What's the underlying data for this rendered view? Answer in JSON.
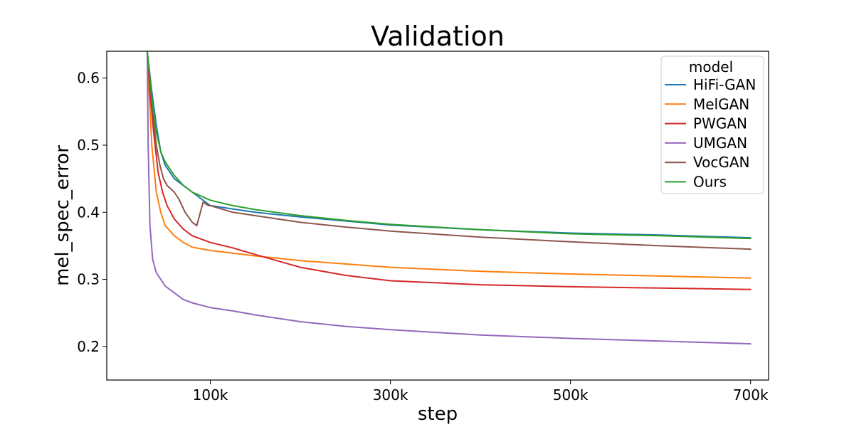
{
  "chart_data": {
    "type": "line",
    "title": "Validation",
    "xlabel": "step",
    "ylabel": "mel_spec_error",
    "xlim": [
      -15000,
      720000
    ],
    "ylim": [
      0.15,
      0.64
    ],
    "xticks": [
      {
        "value": 100000,
        "label": "100k"
      },
      {
        "value": 300000,
        "label": "300k"
      },
      {
        "value": 500000,
        "label": "500k"
      },
      {
        "value": 700000,
        "label": "700k"
      }
    ],
    "yticks": [
      {
        "value": 0.2,
        "label": "0.2"
      },
      {
        "value": 0.3,
        "label": "0.3"
      },
      {
        "value": 0.4,
        "label": "0.4"
      },
      {
        "value": 0.5,
        "label": "0.5"
      },
      {
        "value": 0.6,
        "label": "0.6"
      }
    ],
    "legend": {
      "title": "model",
      "position": "top-right"
    },
    "series": [
      {
        "name": "HiFi-GAN",
        "color": "#1f77b4",
        "x": [
          30000,
          35000,
          40000,
          45000,
          50000,
          60000,
          70000,
          80000,
          100000,
          125000,
          150000,
          200000,
          250000,
          300000,
          400000,
          500000,
          600000,
          700000
        ],
        "y": [
          0.64,
          0.58,
          0.53,
          0.49,
          0.47,
          0.45,
          0.44,
          0.43,
          0.41,
          0.405,
          0.4,
          0.393,
          0.387,
          0.381,
          0.374,
          0.369,
          0.366,
          0.362
        ]
      },
      {
        "name": "MelGAN",
        "color": "#ff7f0e",
        "x": [
          30000,
          32000,
          35000,
          40000,
          45000,
          50000,
          60000,
          70000,
          80000,
          100000,
          125000,
          150000,
          200000,
          250000,
          300000,
          400000,
          500000,
          600000,
          700000
        ],
        "y": [
          0.64,
          0.58,
          0.5,
          0.43,
          0.4,
          0.38,
          0.365,
          0.355,
          0.348,
          0.343,
          0.339,
          0.335,
          0.328,
          0.323,
          0.318,
          0.312,
          0.308,
          0.305,
          0.302
        ]
      },
      {
        "name": "PWGAN",
        "color": "#d62728",
        "x": [
          30000,
          33000,
          37000,
          42000,
          47000,
          52000,
          60000,
          70000,
          80000,
          100000,
          125000,
          150000,
          200000,
          250000,
          300000,
          400000,
          500000,
          600000,
          700000
        ],
        "y": [
          0.64,
          0.58,
          0.52,
          0.46,
          0.43,
          0.41,
          0.39,
          0.375,
          0.365,
          0.355,
          0.347,
          0.337,
          0.318,
          0.306,
          0.298,
          0.292,
          0.289,
          0.287,
          0.285
        ]
      },
      {
        "name": "UMGAN",
        "color": "#9467bd",
        "x": [
          30000,
          31000,
          33000,
          36000,
          40000,
          45000,
          50000,
          60000,
          70000,
          80000,
          100000,
          125000,
          150000,
          200000,
          250000,
          300000,
          400000,
          500000,
          600000,
          700000
        ],
        "y": [
          0.64,
          0.5,
          0.38,
          0.33,
          0.31,
          0.3,
          0.29,
          0.28,
          0.27,
          0.265,
          0.258,
          0.253,
          0.247,
          0.237,
          0.23,
          0.225,
          0.217,
          0.212,
          0.208,
          0.204
        ]
      },
      {
        "name": "VocGAN",
        "color": "#8c564b",
        "x": [
          30000,
          33000,
          36000,
          40000,
          44000,
          48000,
          52000,
          60000,
          65000,
          72000,
          80000,
          85000,
          92000,
          98000,
          100000,
          125000,
          150000,
          200000,
          250000,
          300000,
          400000,
          500000,
          600000,
          700000
        ],
        "y": [
          0.64,
          0.6,
          0.55,
          0.5,
          0.47,
          0.45,
          0.44,
          0.43,
          0.42,
          0.4,
          0.385,
          0.38,
          0.415,
          0.41,
          0.41,
          0.4,
          0.395,
          0.385,
          0.378,
          0.372,
          0.363,
          0.356,
          0.35,
          0.345
        ]
      },
      {
        "name": "Ours",
        "color": "#2ca02c",
        "x": [
          30000,
          35000,
          40000,
          45000,
          50000,
          60000,
          70000,
          80000,
          100000,
          125000,
          150000,
          200000,
          250000,
          300000,
          400000,
          500000,
          600000,
          700000
        ],
        "y": [
          0.64,
          0.57,
          0.52,
          0.49,
          0.475,
          0.455,
          0.44,
          0.43,
          0.418,
          0.41,
          0.404,
          0.395,
          0.388,
          0.382,
          0.374,
          0.368,
          0.365,
          0.361
        ]
      }
    ]
  }
}
